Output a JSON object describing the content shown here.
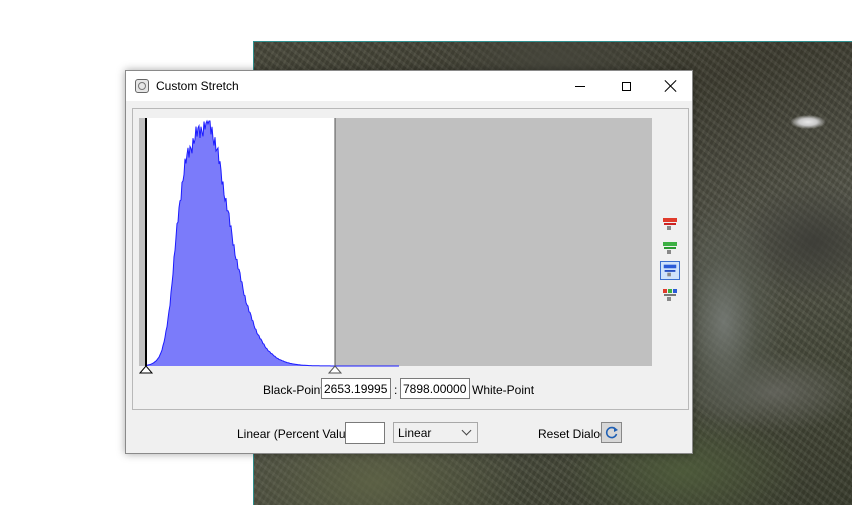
{
  "window": {
    "title": "Custom Stretch"
  },
  "controls": {
    "black_point_label": "Black-Point",
    "black_point_value": "2653.19995",
    "separator": ":",
    "white_point_value": "7898.00000",
    "white_point_label": "White-Point",
    "percent_label": "Linear (Percent Value)",
    "percent_value": "",
    "stretch_type": "Linear",
    "reset_label": "Reset Dialog"
  },
  "histogram": {
    "fill_color": "#7b7bfa",
    "outline_color": "#1b1bff",
    "selected_range_color": "#ffffff",
    "outside_range_color": "#c0c0c0",
    "white_point_fraction": 0.37
  },
  "icons": {
    "side": [
      "red-band-histogram-icon",
      "green-band-histogram-icon",
      "blue-band-histogram-icon",
      "all-bands-histogram-icon"
    ],
    "reset": "refresh-icon"
  }
}
